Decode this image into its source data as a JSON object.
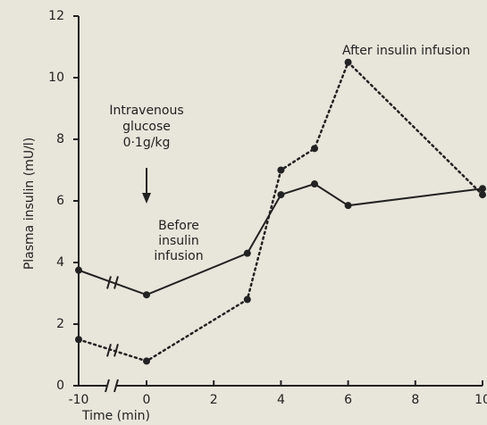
{
  "chart_data": {
    "type": "line",
    "xlabel": "Time (min)",
    "ylabel": "Plasma insulin (mU/l)",
    "x": [
      -10,
      0,
      3,
      4,
      5,
      6,
      10
    ],
    "series": [
      {
        "name": "Before insulin infusion",
        "color": "#222222",
        "style": "solid",
        "values": [
          3.75,
          2.95,
          4.3,
          6.2,
          6.55,
          5.85,
          6.4
        ]
      },
      {
        "name": "After insulin infusion",
        "color": "#222222",
        "style": "dotted",
        "values": [
          1.5,
          0.8,
          2.8,
          7.0,
          7.7,
          10.5,
          6.2
        ]
      }
    ],
    "xlim": [
      -10,
      10
    ],
    "xbreak": [
      -10,
      0
    ],
    "xticks": [
      -10,
      0,
      2,
      4,
      6,
      8,
      10
    ],
    "ylim": [
      0,
      12
    ],
    "yticks": [
      0,
      2,
      4,
      6,
      8,
      10,
      12
    ],
    "annotations": [
      {
        "lines": [
          "Intravenous",
          "glucose",
          "0·1g/kg"
        ]
      }
    ]
  }
}
